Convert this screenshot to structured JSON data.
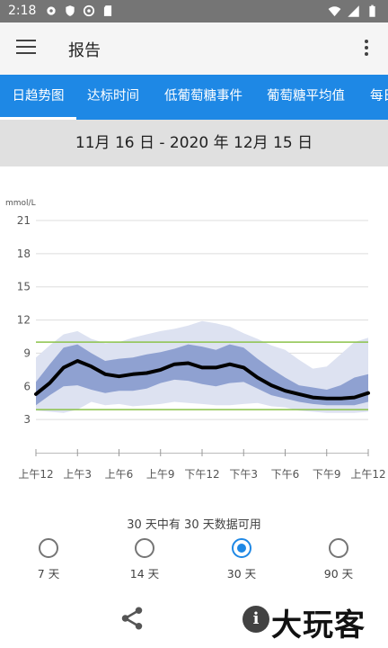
{
  "status_bar": {
    "time": "2:18"
  },
  "app_bar": {
    "title": "报告"
  },
  "tabs": [
    {
      "label": "日趋势图",
      "active": true
    },
    {
      "label": "达标时间",
      "active": false
    },
    {
      "label": "低葡萄糖事件",
      "active": false
    },
    {
      "label": "葡萄糖平均值",
      "active": false
    },
    {
      "label": "每日",
      "active": false
    }
  ],
  "date_range": "11月 16 日 - 2020 年 12月 15 日",
  "chart_data": {
    "type": "area",
    "unit_label": "mmol/L",
    "ylim": [
      0,
      21
    ],
    "yticks": [
      "21",
      "18",
      "15",
      "12",
      "9",
      "6",
      "3"
    ],
    "ytick_values": [
      21,
      18,
      15,
      12,
      9,
      6,
      3
    ],
    "xlabels": [
      "上午12",
      "上午3",
      "上午6",
      "上午9",
      "下午12",
      "下午3",
      "下午6",
      "下午9",
      "上午12"
    ],
    "x_hours": [
      0,
      3,
      6,
      9,
      12,
      15,
      18,
      21,
      24
    ],
    "target_range": [
      3.9,
      10.0
    ],
    "colors": {
      "median": "#000000",
      "inner_band": "#8fa1d1",
      "outer_band": "#dde2f1",
      "target": "#8bc34a",
      "grid": "#dddddd"
    },
    "series": {
      "hours": [
        0,
        1,
        2,
        3,
        4,
        5,
        6,
        7,
        8,
        9,
        10,
        11,
        12,
        13,
        14,
        15,
        16,
        17,
        18,
        19,
        20,
        21,
        22,
        23,
        24
      ],
      "p10": [
        3.8,
        3.7,
        3.6,
        3.9,
        4.6,
        4.3,
        4.4,
        4.2,
        4.3,
        4.4,
        4.6,
        4.5,
        4.4,
        4.3,
        4.3,
        4.4,
        4.5,
        4.2,
        4.1,
        3.8,
        3.7,
        3.6,
        3.6,
        3.6,
        3.7
      ],
      "p25": [
        4.3,
        5.2,
        6.0,
        6.1,
        5.7,
        5.4,
        5.6,
        5.6,
        5.8,
        6.3,
        6.6,
        6.5,
        6.2,
        6.0,
        6.3,
        6.4,
        5.8,
        5.2,
        4.9,
        4.6,
        4.4,
        4.3,
        4.3,
        4.3,
        4.6
      ],
      "median": [
        5.3,
        6.3,
        7.7,
        8.3,
        7.8,
        7.1,
        6.9,
        7.1,
        7.2,
        7.5,
        8.0,
        8.1,
        7.7,
        7.7,
        8.0,
        7.7,
        6.8,
        6.1,
        5.6,
        5.3,
        5.0,
        4.9,
        4.9,
        5.0,
        5.4
      ],
      "p75": [
        6.4,
        8.0,
        9.5,
        9.8,
        9.0,
        8.3,
        8.5,
        8.6,
        8.9,
        9.1,
        9.4,
        9.8,
        9.6,
        9.3,
        9.8,
        9.5,
        8.5,
        7.6,
        6.8,
        6.1,
        5.9,
        5.7,
        6.1,
        6.8,
        7.1
      ],
      "p90": [
        8.6,
        9.7,
        10.7,
        11.0,
        10.3,
        9.9,
        10.0,
        10.4,
        10.7,
        11.0,
        11.2,
        11.5,
        11.9,
        11.7,
        11.4,
        10.8,
        10.3,
        9.7,
        9.3,
        8.4,
        7.6,
        7.8,
        8.9,
        10.0,
        10.4
      ]
    }
  },
  "availability_text": "30 天中有 30 天数据可用",
  "range_options": [
    {
      "label": "7 天",
      "selected": false
    },
    {
      "label": "14 天",
      "selected": false
    },
    {
      "label": "30 天",
      "selected": true
    },
    {
      "label": "90 天",
      "selected": false
    }
  ],
  "bottom": {
    "info_glyph": "i",
    "watermark": "大玩客"
  },
  "icons": [
    "gear-icon",
    "shield-icon",
    "at-icon",
    "sd-card-icon",
    "wifi-icon",
    "cellular-icon",
    "battery-icon",
    "menu-icon",
    "more-vert-icon",
    "share-icon",
    "info-icon"
  ]
}
